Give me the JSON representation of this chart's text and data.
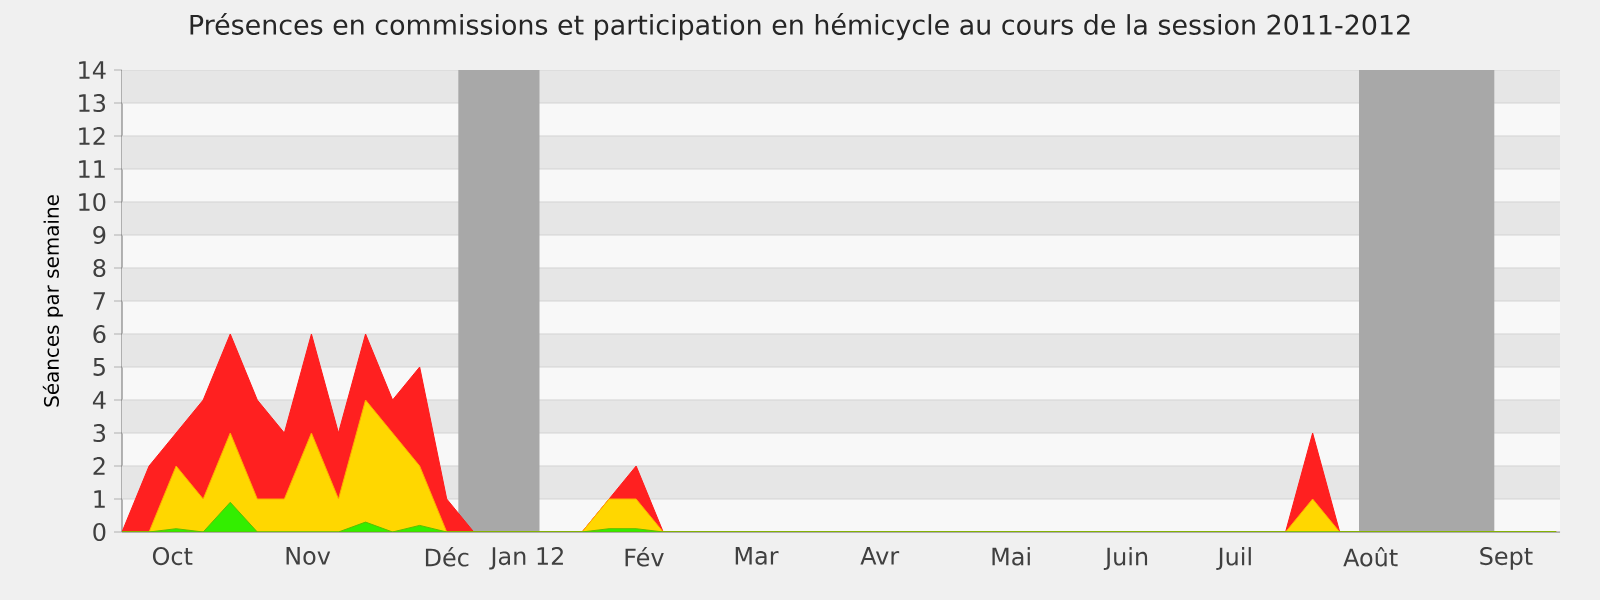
{
  "chart_data": {
    "type": "area",
    "title": "Présences en commissions et participation en hémicycle au cours de la session 2011-2012",
    "ylabel": "Séances par semaine",
    "x": [
      "2011-09-19",
      "2011-09-26",
      "2011-10-03",
      "2011-10-10",
      "2011-10-17",
      "2011-10-24",
      "2011-10-31",
      "2011-11-07",
      "2011-11-14",
      "2011-11-21",
      "2011-11-28",
      "2011-12-05",
      "2011-12-12",
      "2011-12-19",
      "2011-12-26",
      "2012-01-02",
      "2012-01-09",
      "2012-01-16",
      "2012-01-23",
      "2012-01-30",
      "2012-02-06",
      "2012-02-13",
      "2012-02-20",
      "2012-02-27",
      "2012-03-05",
      "2012-03-12",
      "2012-03-19",
      "2012-03-26",
      "2012-04-02",
      "2012-04-09",
      "2012-04-16",
      "2012-04-23",
      "2012-04-30",
      "2012-05-07",
      "2012-05-14",
      "2012-05-21",
      "2012-05-28",
      "2012-06-04",
      "2012-06-11",
      "2012-06-18",
      "2012-06-25",
      "2012-07-02",
      "2012-07-09",
      "2012-07-16",
      "2012-07-23",
      "2012-07-30",
      "2012-08-06",
      "2012-08-13",
      "2012-08-20",
      "2012-08-27",
      "2012-09-03",
      "2012-09-10",
      "2012-09-17",
      "2012-09-24"
    ],
    "series": [
      {
        "color": "#ff2020",
        "values": [
          0,
          2,
          3,
          4,
          6,
          4,
          3,
          6,
          3,
          6,
          4,
          5,
          1,
          0,
          0,
          0,
          0,
          0,
          1,
          2,
          0,
          0,
          0,
          0,
          0,
          0,
          0,
          0,
          0,
          0,
          0,
          0,
          0,
          0,
          0,
          0,
          0,
          0,
          0,
          0,
          0,
          0,
          0,
          0,
          3,
          0,
          0,
          0,
          0,
          0,
          0,
          0,
          0,
          0
        ]
      },
      {
        "color": "#ffd700",
        "values": [
          0,
          0,
          2,
          1,
          3,
          1,
          1,
          3,
          1,
          4,
          3,
          2,
          0,
          0,
          0,
          0,
          0,
          0,
          1,
          1,
          0,
          0,
          0,
          0,
          0,
          0,
          0,
          0,
          0,
          0,
          0,
          0,
          0,
          0,
          0,
          0,
          0,
          0,
          0,
          0,
          0,
          0,
          0,
          0,
          1,
          0,
          0,
          0,
          0,
          0,
          0,
          0,
          0,
          0
        ]
      },
      {
        "color": "#33ee00",
        "values": [
          0,
          0,
          0.1,
          0,
          0.9,
          0,
          0,
          0,
          0,
          0.3,
          0,
          0.2,
          0,
          0,
          0,
          0,
          0,
          0,
          0.1,
          0.1,
          0,
          0,
          0,
          0,
          0,
          0,
          0,
          0,
          0,
          0,
          0,
          0,
          0,
          0,
          0,
          0,
          0,
          0,
          0,
          0,
          0,
          0,
          0,
          0,
          0,
          0,
          0,
          0,
          0,
          0,
          0,
          0,
          0,
          0
        ]
      }
    ],
    "xlim": [
      "2011-09-19",
      "2012-09-25"
    ],
    "ylim": [
      0,
      14
    ],
    "yticks": [
      0,
      1,
      2,
      3,
      4,
      5,
      6,
      7,
      8,
      9,
      10,
      11,
      12,
      13,
      14
    ],
    "xticks": [
      {
        "value": "2011-10-02",
        "label": "Oct"
      },
      {
        "value": "2011-11-06",
        "label": "Nov"
      },
      {
        "value": "2011-12-12",
        "label": "Déc"
      },
      {
        "value": "2012-01-02",
        "label": "Jan 12"
      },
      {
        "value": "2012-02-01",
        "label": "Fév"
      },
      {
        "value": "2012-03-01",
        "label": "Mar"
      },
      {
        "value": "2012-04-02",
        "label": "Avr"
      },
      {
        "value": "2012-05-06",
        "label": "Mai"
      },
      {
        "value": "2012-06-05",
        "label": "Juin"
      },
      {
        "value": "2012-07-03",
        "label": "Juil"
      },
      {
        "value": "2012-08-07",
        "label": "Août"
      },
      {
        "value": "2012-09-11",
        "label": "Sept"
      },
      {
        "value": "2011-09-19",
        "label": null
      },
      {
        "value": "2011-09-26",
        "label": null
      },
      {
        "value": "2011-10-03",
        "label": null
      },
      {
        "value": "2011-10-10",
        "label": null
      },
      {
        "value": "2011-10-17",
        "label": null
      },
      {
        "value": "2011-10-24",
        "label": null
      },
      {
        "value": "2011-10-31",
        "label": null
      },
      {
        "value": "2011-11-07",
        "label": null
      },
      {
        "value": "2011-11-14",
        "label": null
      },
      {
        "value": "2011-11-21",
        "label": null
      },
      {
        "value": "2011-11-28",
        "label": null
      },
      {
        "value": "2011-12-05",
        "label": null
      },
      {
        "value": "2011-12-12",
        "label": null
      },
      {
        "value": "2011-12-19",
        "label": null
      },
      {
        "value": "2011-12-26",
        "label": null
      },
      {
        "value": "2012-01-02",
        "label": null
      },
      {
        "value": "2012-01-09",
        "label": null
      },
      {
        "value": "2012-01-16",
        "label": null
      },
      {
        "value": "2012-01-23",
        "label": null
      },
      {
        "value": "2012-01-30",
        "label": null
      },
      {
        "value": "2012-02-06",
        "label": null
      },
      {
        "value": "2012-02-13",
        "label": null
      },
      {
        "value": "2012-02-20",
        "label": null
      },
      {
        "value": "2012-02-27",
        "label": null
      },
      {
        "value": "2012-03-05",
        "label": null
      },
      {
        "value": "2012-03-12",
        "label": null
      },
      {
        "value": "2012-03-19",
        "label": null
      },
      {
        "value": "2012-03-26",
        "label": null
      },
      {
        "value": "2012-04-02",
        "label": null
      },
      {
        "value": "2012-04-09",
        "label": null
      },
      {
        "value": "2012-04-16",
        "label": null
      },
      {
        "value": "2012-04-23",
        "label": null
      },
      {
        "value": "2012-04-30",
        "label": null
      },
      {
        "value": "2012-05-07",
        "label": null
      },
      {
        "value": "2012-05-14",
        "label": null
      },
      {
        "value": "2012-05-21",
        "label": null
      },
      {
        "value": "2012-05-28",
        "label": null
      },
      {
        "value": "2012-06-04",
        "label": null
      },
      {
        "value": "2012-06-11",
        "label": null
      },
      {
        "value": "2012-06-18",
        "label": null
      },
      {
        "value": "2012-06-25",
        "label": null
      },
      {
        "value": "2012-07-02",
        "label": null
      },
      {
        "value": "2012-07-09",
        "label": null
      },
      {
        "value": "2012-07-16",
        "label": null
      },
      {
        "value": "2012-07-23",
        "label": null
      },
      {
        "value": "2012-07-30",
        "label": null
      },
      {
        "value": "2012-08-06",
        "label": null
      },
      {
        "value": "2012-08-13",
        "label": null
      },
      {
        "value": "2012-08-20",
        "label": null
      },
      {
        "value": "2012-08-27",
        "label": null
      },
      {
        "value": "2012-09-03",
        "label": null
      },
      {
        "value": "2012-09-10",
        "label": null
      },
      {
        "value": "2012-09-17",
        "label": null
      }
    ],
    "bands": [
      {
        "axis": "x",
        "from": "2011-12-15",
        "to": "2012-01-05",
        "color": "#a8a8a8"
      },
      {
        "axis": "x",
        "from": "2012-08-04",
        "to": "2012-09-08",
        "color": "#a8a8a8"
      }
    ],
    "grid": "y"
  }
}
